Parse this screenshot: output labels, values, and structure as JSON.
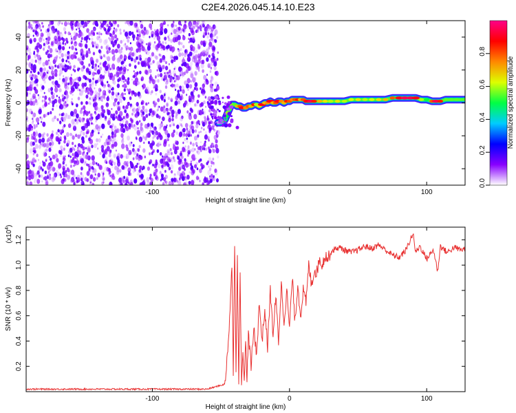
{
  "title": "C2E4.2026.045.14.10.E23",
  "chart_data": [
    {
      "type": "heatmap",
      "name": "spectrogram",
      "xlabel": "Height of straight line (km)",
      "ylabel": "Frequency (Hz)",
      "xlim": [
        -192,
        128
      ],
      "ylim": [
        -50,
        50
      ],
      "xticks": [
        -100,
        0,
        100
      ],
      "yticks": [
        -40,
        -20,
        0,
        20,
        40
      ],
      "noise_region_x": [
        -192,
        -52
      ],
      "ridge": [
        {
          "x": -52,
          "f": -12,
          "a": 0.05
        },
        {
          "x": -50,
          "f": -12,
          "a": 0.08
        },
        {
          "x": -49,
          "f": -11,
          "a": 0.35
        },
        {
          "x": -48,
          "f": -11,
          "a": 0.55
        },
        {
          "x": -47,
          "f": -10,
          "a": 0.45
        },
        {
          "x": -46,
          "f": -8,
          "a": 0.5
        },
        {
          "x": -45,
          "f": -6,
          "a": 0.6
        },
        {
          "x": -44,
          "f": -4,
          "a": 0.55
        },
        {
          "x": -43,
          "f": -2,
          "a": 0.5
        },
        {
          "x": -42,
          "f": -1,
          "a": 0.6
        },
        {
          "x": -40,
          "f": -1,
          "a": 0.55
        },
        {
          "x": -38,
          "f": -2,
          "a": 0.7
        },
        {
          "x": -36,
          "f": -2,
          "a": 0.8
        },
        {
          "x": -34,
          "f": -3,
          "a": 0.9
        },
        {
          "x": -32,
          "f": -3,
          "a": 0.75
        },
        {
          "x": -30,
          "f": -2,
          "a": 0.8
        },
        {
          "x": -28,
          "f": -2,
          "a": 0.7
        },
        {
          "x": -26,
          "f": -1,
          "a": 0.85
        },
        {
          "x": -24,
          "f": -1,
          "a": 0.6
        },
        {
          "x": -22,
          "f": -2,
          "a": 0.65
        },
        {
          "x": -20,
          "f": -1,
          "a": 0.9
        },
        {
          "x": -18,
          "f": 0,
          "a": 0.7
        },
        {
          "x": -16,
          "f": 0,
          "a": 0.75
        },
        {
          "x": -14,
          "f": 1,
          "a": 0.9
        },
        {
          "x": -12,
          "f": 0,
          "a": 0.7
        },
        {
          "x": -10,
          "f": 0,
          "a": 0.8
        },
        {
          "x": -8,
          "f": 1,
          "a": 0.9
        },
        {
          "x": -6,
          "f": 1,
          "a": 0.75
        },
        {
          "x": -4,
          "f": 0,
          "a": 0.7
        },
        {
          "x": -2,
          "f": 1,
          "a": 0.85
        },
        {
          "x": 0,
          "f": 1,
          "a": 0.8
        },
        {
          "x": 2,
          "f": 2,
          "a": 0.75
        },
        {
          "x": 4,
          "f": 2,
          "a": 0.8
        },
        {
          "x": 6,
          "f": 2,
          "a": 0.85
        },
        {
          "x": 8,
          "f": 2,
          "a": 0.7
        },
        {
          "x": 10,
          "f": 2,
          "a": 0.8
        },
        {
          "x": 12,
          "f": 1,
          "a": 0.85
        },
        {
          "x": 14,
          "f": 1,
          "a": 0.9
        },
        {
          "x": 16,
          "f": 1,
          "a": 0.95
        },
        {
          "x": 18,
          "f": 1,
          "a": 0.85
        },
        {
          "x": 22,
          "f": 1,
          "a": 0.7
        },
        {
          "x": 26,
          "f": 1,
          "a": 0.65
        },
        {
          "x": 30,
          "f": 1,
          "a": 0.6
        },
        {
          "x": 35,
          "f": 1,
          "a": 0.65
        },
        {
          "x": 40,
          "f": 1,
          "a": 0.6
        },
        {
          "x": 45,
          "f": 2,
          "a": 0.62
        },
        {
          "x": 50,
          "f": 2,
          "a": 0.65
        },
        {
          "x": 55,
          "f": 2,
          "a": 0.6
        },
        {
          "x": 60,
          "f": 2,
          "a": 0.62
        },
        {
          "x": 65,
          "f": 2,
          "a": 0.66
        },
        {
          "x": 70,
          "f": 2,
          "a": 0.7
        },
        {
          "x": 75,
          "f": 3,
          "a": 0.8
        },
        {
          "x": 80,
          "f": 3,
          "a": 0.9
        },
        {
          "x": 84,
          "f": 3,
          "a": 0.95
        },
        {
          "x": 88,
          "f": 3,
          "a": 0.95
        },
        {
          "x": 92,
          "f": 3,
          "a": 0.9
        },
        {
          "x": 96,
          "f": 2,
          "a": 0.6
        },
        {
          "x": 100,
          "f": 2,
          "a": 0.5
        },
        {
          "x": 104,
          "f": 1,
          "a": 0.8
        },
        {
          "x": 107,
          "f": 1,
          "a": 0.95
        },
        {
          "x": 110,
          "f": 1,
          "a": 0.85
        },
        {
          "x": 114,
          "f": 2,
          "a": 0.55
        },
        {
          "x": 118,
          "f": 2,
          "a": 0.55
        },
        {
          "x": 122,
          "f": 2,
          "a": 0.55
        },
        {
          "x": 128,
          "f": 2,
          "a": 0.55
        }
      ]
    },
    {
      "type": "colorbar",
      "name": "amplitude-colorbar",
      "label": "Normalized spectral amplitude",
      "range": [
        0,
        1
      ],
      "ticks": [
        0.0,
        0.2,
        0.4,
        0.6,
        0.8
      ],
      "tick_labels": [
        "0.0",
        "0.2",
        "0.4",
        "0.6",
        "0.8"
      ],
      "stops": [
        "#ffffff",
        "#8800ff",
        "#0000ff",
        "#00ccff",
        "#00ff44",
        "#ddff00",
        "#ff8800",
        "#ff0000",
        "#ff0088"
      ]
    },
    {
      "type": "line",
      "name": "snr-plot",
      "xlabel": "Height of straight line (km)",
      "ylabel": "SNR (10 * v/v)",
      "y_multiplier": "(x10",
      "y_multiplier_exp": "4",
      "y_multiplier_close": ")",
      "xlim": [
        -192,
        128
      ],
      "ylim": [
        0,
        1.3
      ],
      "xticks": [
        -100,
        0,
        100
      ],
      "yticks": [
        0.2,
        0.4,
        0.6,
        0.8,
        1.0,
        1.2
      ],
      "line_color": "#e83030",
      "series": [
        {
          "name": "SNR",
          "x": [
            -192,
            -150,
            -100,
            -60,
            -47,
            -44,
            -42,
            -41,
            -40,
            -39,
            -38,
            -37,
            -36,
            -35,
            -34,
            -33,
            -32,
            -31,
            -30,
            -28,
            -26,
            -24,
            -22,
            -20,
            -18,
            -16,
            -14,
            -12,
            -10,
            -8,
            -6,
            -4,
            -2,
            0,
            2,
            4,
            6,
            8,
            10,
            12,
            14,
            16,
            18,
            20,
            22,
            24,
            26,
            28,
            30,
            32,
            36,
            40,
            45,
            50,
            55,
            60,
            65,
            70,
            75,
            80,
            85,
            88,
            90,
            92,
            95,
            100,
            105,
            108,
            110,
            115,
            120,
            125,
            128
          ],
          "y": [
            0.02,
            0.02,
            0.02,
            0.02,
            0.06,
            0.5,
            1.0,
            0.15,
            1.2,
            0.2,
            1.05,
            0.1,
            0.9,
            0.1,
            0.35,
            0.05,
            0.4,
            0.1,
            0.45,
            0.2,
            0.5,
            0.3,
            0.7,
            0.4,
            0.65,
            0.35,
            0.8,
            0.45,
            0.75,
            0.4,
            0.85,
            0.55,
            0.8,
            0.5,
            0.9,
            0.55,
            0.85,
            0.6,
            0.8,
            0.7,
            1.0,
            0.85,
            0.95,
            0.95,
            1.05,
            1.0,
            1.08,
            1.05,
            1.1,
            1.12,
            1.14,
            1.12,
            1.1,
            1.12,
            1.15,
            1.13,
            1.16,
            1.12,
            1.08,
            1.06,
            1.12,
            1.2,
            1.25,
            1.1,
            1.15,
            1.05,
            1.12,
            0.95,
            1.15,
            1.1,
            1.14,
            1.12,
            1.13
          ]
        }
      ]
    }
  ]
}
